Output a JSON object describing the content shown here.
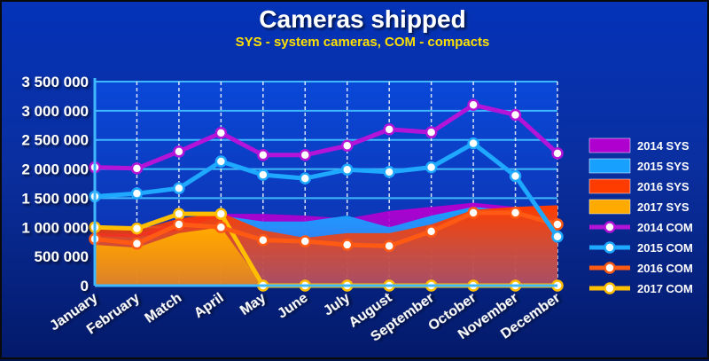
{
  "chart_data": {
    "type": "line",
    "title": "Cameras shipped",
    "subtitle": "SYS - system cameras, COM - compacts",
    "categories": [
      "January",
      "February",
      "Match",
      "April",
      "May",
      "June",
      "July",
      "August",
      "September",
      "October",
      "November",
      "December"
    ],
    "ylim": [
      0,
      3500000
    ],
    "yticks": [
      "0",
      "500 000",
      "1 000 000",
      "1 500 000",
      "2 000 000",
      "2 500 000",
      "3 000 000",
      "3 500 000"
    ],
    "ytick_values": [
      0,
      500000,
      1000000,
      1500000,
      2000000,
      2500000,
      3000000,
      3500000
    ],
    "grid": true,
    "legend_position": "right",
    "area_series": [
      {
        "name": "2014 SYS",
        "color": "#b000d0",
        "values": [
          900000,
          880000,
          1100000,
          1230000,
          1230000,
          1200000,
          1150000,
          1280000,
          1350000,
          1420000,
          1350000,
          1350000
        ]
      },
      {
        "name": "2015 SYS",
        "color": "#18a0ff",
        "values": [
          850000,
          830000,
          950000,
          1200000,
          1100000,
          1100000,
          1200000,
          1000000,
          1200000,
          1350000,
          1280000,
          1300000
        ]
      },
      {
        "name": "2016 SYS",
        "color": "#ff3c00",
        "values": [
          1050000,
          950000,
          1150000,
          1250000,
          950000,
          820000,
          900000,
          900000,
          1050000,
          1300000,
          1350000,
          1380000
        ]
      },
      {
        "name": "2017 SYS",
        "color": "#ffaa00",
        "values": [
          700000,
          650000,
          900000,
          1000000,
          0,
          0,
          0,
          0,
          0,
          0,
          0,
          0
        ]
      }
    ],
    "line_series": [
      {
        "name": "2014 COM",
        "color": "#b414d8",
        "values": [
          2030000,
          2010000,
          2300000,
          2620000,
          2240000,
          2240000,
          2400000,
          2680000,
          2630000,
          3100000,
          2930000,
          2270000
        ]
      },
      {
        "name": "2015 COM",
        "color": "#1ea8ff",
        "values": [
          1530000,
          1580000,
          1670000,
          2130000,
          1900000,
          1840000,
          1990000,
          1950000,
          2030000,
          2440000,
          1880000,
          840000
        ]
      },
      {
        "name": "2016 COM",
        "color": "#ff5a14",
        "values": [
          800000,
          720000,
          1050000,
          1000000,
          780000,
          760000,
          700000,
          680000,
          930000,
          1250000,
          1250000,
          1050000
        ]
      },
      {
        "name": "2017 COM",
        "color": "#ffbe00",
        "values": [
          1000000,
          980000,
          1230000,
          1230000,
          0,
          0,
          0,
          0,
          0,
          0,
          0,
          0
        ]
      }
    ]
  }
}
